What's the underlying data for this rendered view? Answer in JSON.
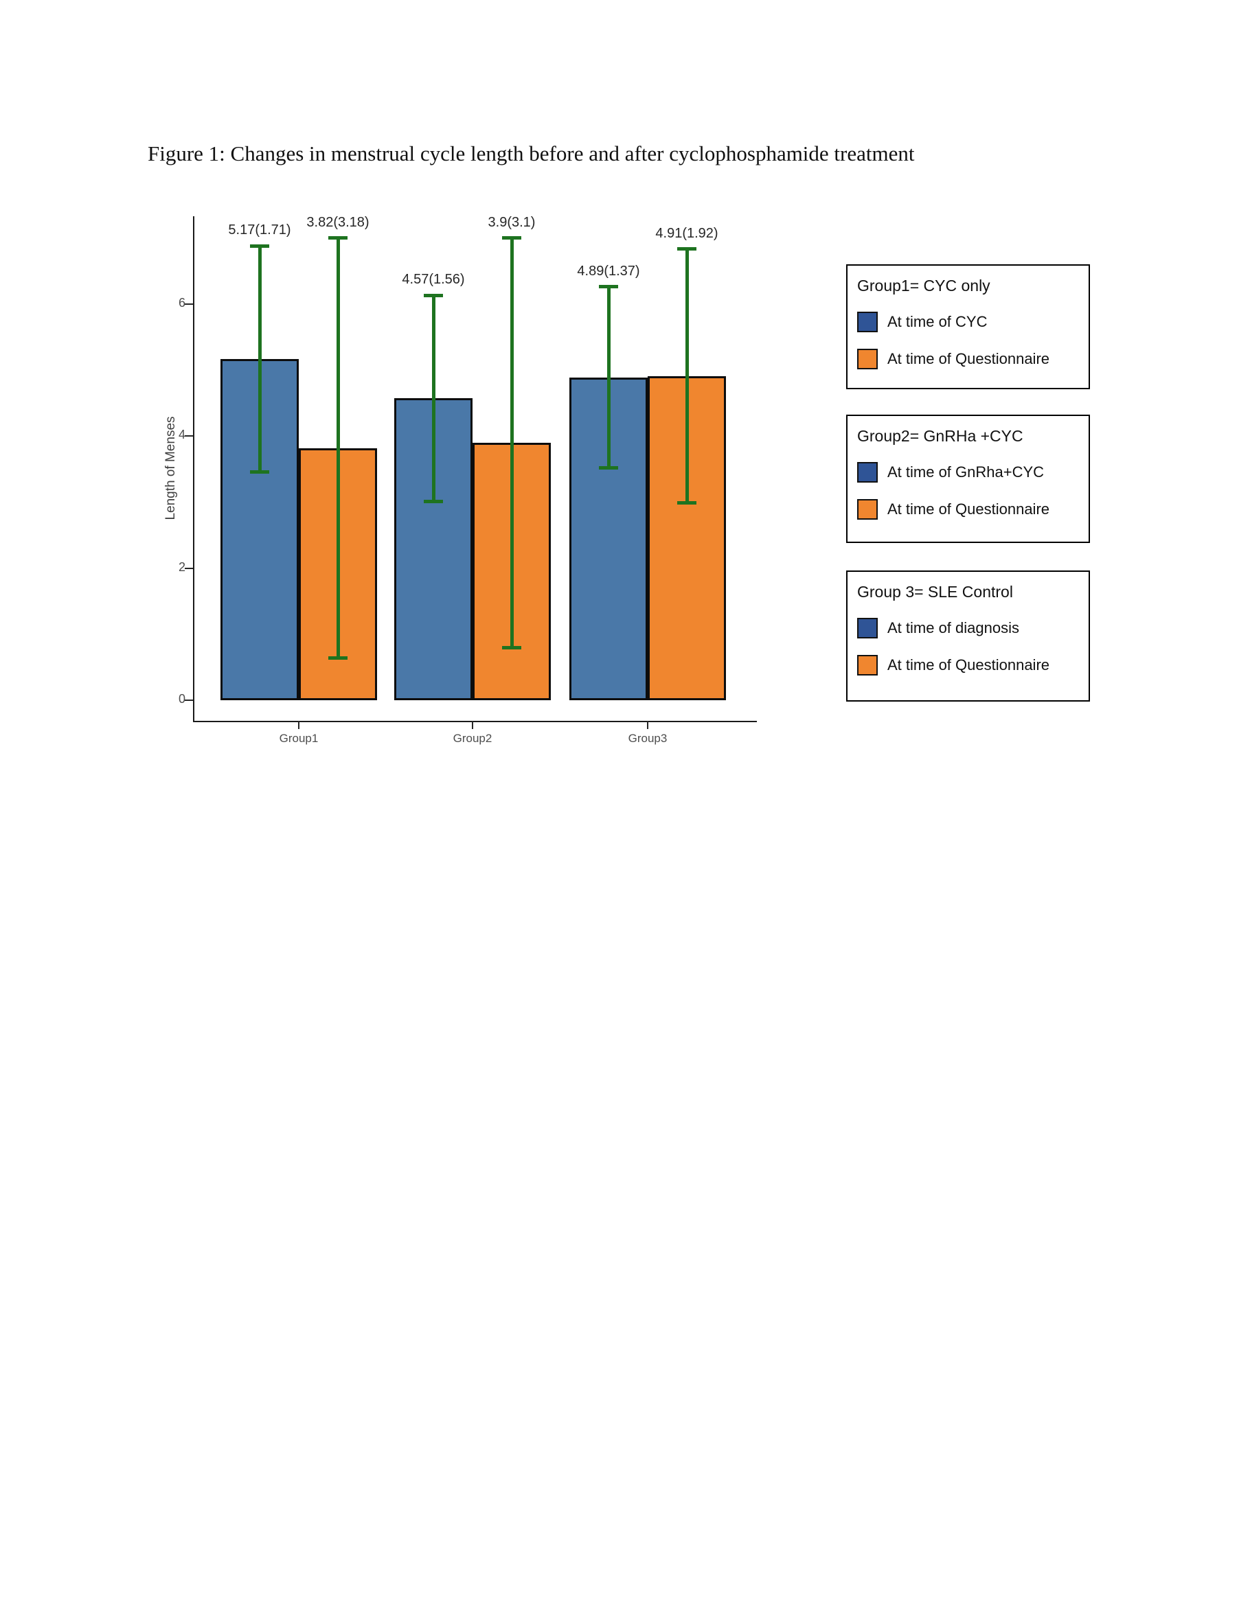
{
  "page": {
    "figure_caption": "Figure 1: Changes in menstrual cycle length before and after cyclophosphamide treatment"
  },
  "chart_data": {
    "type": "bar",
    "title": "Figure 1: Changes in menstrual cycle length before and after cyclophosphamide treatment",
    "xlabel": "",
    "ylabel": "Length of Menses",
    "categories": [
      "Group1",
      "Group2",
      "Group3"
    ],
    "yticks": [
      0,
      2,
      4,
      6
    ],
    "ylim": [
      0,
      7.33
    ],
    "grid": false,
    "legend_position": "right",
    "error_bar_color": "#1e7320",
    "series": [
      {
        "name": "At time of CYC / GnRha+CYC / diagnosis",
        "color": "#4a78a8",
        "values": [
          5.17,
          4.57,
          4.89
        ],
        "sd": [
          1.71,
          1.56,
          1.37
        ],
        "labels": [
          "5.17(1.71)",
          "4.57(1.56)",
          "4.89(1.37)"
        ]
      },
      {
        "name": "At time of Questionnaire",
        "color": "#f0862f",
        "values": [
          3.82,
          3.9,
          4.91
        ],
        "sd": [
          3.18,
          3.1,
          1.92
        ],
        "labels": [
          "3.82(3.18)",
          "3.9(3.1)",
          "4.91(1.92)"
        ]
      }
    ]
  },
  "colors": {
    "bar_blue": "#4a78a8",
    "bar_orange": "#f0862f",
    "swatch_blue": "#2f5496",
    "swatch_orange": "#f0862f",
    "error_green": "#1e7320",
    "axis_black": "#1a1a1a",
    "tick_gray": "#4d4d4d"
  },
  "legends": [
    {
      "title": "Group1= CYC only",
      "items": [
        {
          "color": "#2f5496",
          "label": "At time of CYC"
        },
        {
          "color": "#f0862f",
          "label": "At time of Questionnaire"
        }
      ]
    },
    {
      "title": "Group2= GnRHa +CYC",
      "items": [
        {
          "color": "#2f5496",
          "label": "At time of GnRha+CYC"
        },
        {
          "color": "#f0862f",
          "label": "At time of Questionnaire"
        }
      ]
    },
    {
      "title": "Group 3= SLE Control",
      "items": [
        {
          "color": "#2f5496",
          "label": "At time of diagnosis"
        },
        {
          "color": "#f0862f",
          "label": "At time of Questionnaire"
        }
      ]
    }
  ]
}
